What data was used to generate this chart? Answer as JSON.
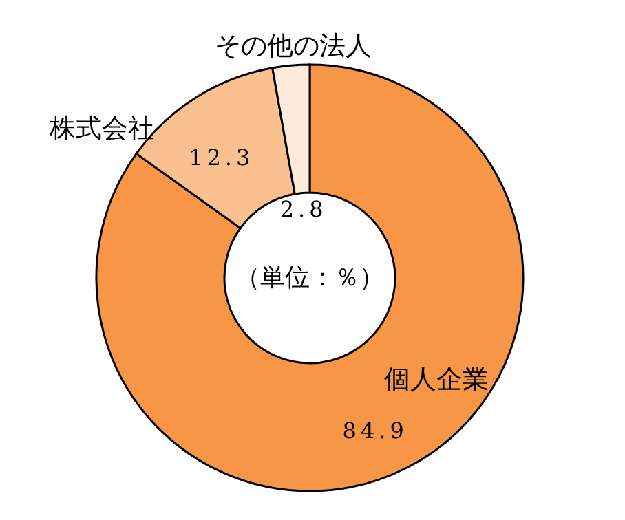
{
  "chart_data": {
    "type": "donut",
    "categories": [
      "個人企業",
      "株式会社",
      "その他の法人"
    ],
    "values": [
      84.9,
      12.3,
      2.8
    ],
    "colors": [
      "#f79646",
      "#fac090",
      "#fde9d9"
    ],
    "data_labels": true,
    "annotations": [
      "（単位：％）"
    ]
  }
}
